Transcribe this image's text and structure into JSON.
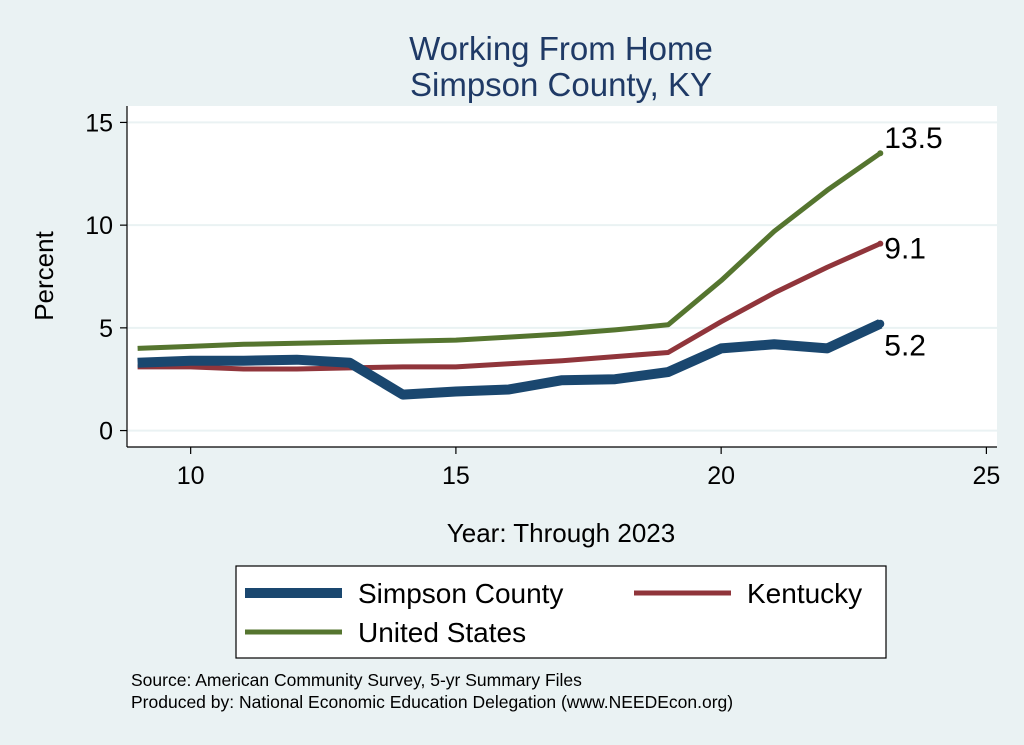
{
  "chart_data": {
    "type": "line",
    "title": [
      "Working From Home",
      "Simpson County, KY"
    ],
    "xlabel": "Year: Through 2023",
    "ylabel": "Percent",
    "xlim": [
      8.8,
      25.2
    ],
    "ylim": [
      -0.8,
      15.8
    ],
    "xticks": [
      10,
      15,
      20,
      25
    ],
    "yticks": [
      0,
      5,
      10,
      15
    ],
    "grid": true,
    "legend_position": "bottom",
    "x": [
      9,
      10,
      11,
      12,
      13,
      14,
      15,
      16,
      17,
      18,
      19,
      20,
      21,
      22,
      23
    ],
    "series": [
      {
        "name": "Simpson County",
        "color": "#1a476f",
        "values": [
          3.3,
          3.4,
          3.4,
          3.45,
          3.3,
          1.75,
          1.9,
          2.0,
          2.45,
          2.5,
          2.85,
          4.0,
          4.2,
          4.0,
          5.2
        ],
        "end_label": "5.2"
      },
      {
        "name": "Kentucky",
        "color": "#90353b",
        "values": [
          3.1,
          3.1,
          3.0,
          3.0,
          3.05,
          3.1,
          3.1,
          3.25,
          3.4,
          3.6,
          3.8,
          5.3,
          6.7,
          7.95,
          9.1
        ],
        "end_label": "9.1"
      },
      {
        "name": "United States",
        "color": "#55752f",
        "values": [
          4.0,
          4.1,
          4.2,
          4.25,
          4.3,
          4.35,
          4.4,
          4.55,
          4.7,
          4.9,
          5.15,
          7.3,
          9.7,
          11.7,
          13.5
        ],
        "end_label": "13.5"
      }
    ]
  },
  "source_lines": [
    "Source: American Community Survey, 5-yr Summary Files",
    "Produced by: National Economic Education Delegation (www.NEEDEcon.org)"
  ]
}
